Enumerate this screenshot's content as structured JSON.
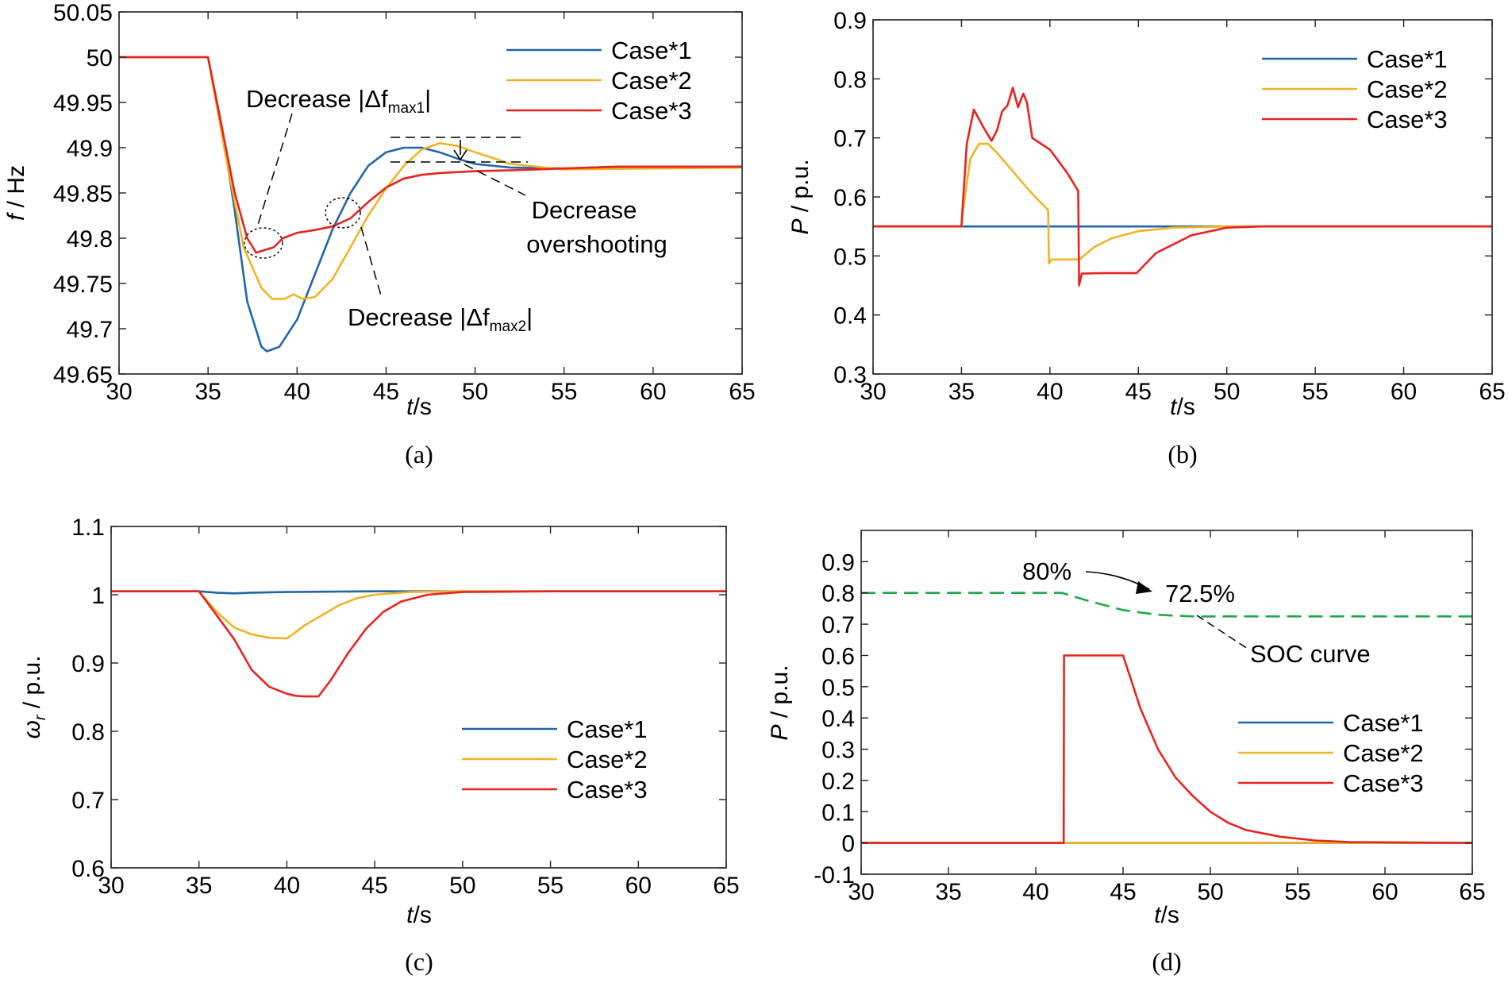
{
  "colors": {
    "case1": "#2166ac",
    "case2": "#f0b323",
    "case3": "#e8231e",
    "soc": "#1fa84a",
    "axis": "#222222"
  },
  "chart_data": [
    {
      "id": "a",
      "type": "line",
      "caption": "(a)",
      "xlabel": {
        "var": "t",
        "unit": "/s"
      },
      "ylabel": {
        "var": "f",
        "unit": " / Hz"
      },
      "xlim": [
        30,
        65
      ],
      "ylim": [
        49.65,
        50.05
      ],
      "xticks": [
        30,
        35,
        40,
        45,
        50,
        55,
        60,
        65
      ],
      "xtick_labels": [
        "30",
        "35",
        "40",
        "45",
        "50",
        "55",
        "60",
        "65"
      ],
      "yticks": [
        49.65,
        49.7,
        49.75,
        49.8,
        49.85,
        49.9,
        49.95,
        50,
        50.05
      ],
      "ytick_labels": [
        "49.65",
        "49.7",
        "49.75",
        "49.8",
        "49.85",
        "49.9",
        "49.95",
        "50",
        "50.05"
      ],
      "legend": [
        "Case*1",
        "Case*2",
        "Case*3"
      ],
      "series": [
        {
          "name": "Case*1",
          "x": [
            30,
            35,
            35.8,
            36.5,
            37.2,
            38,
            38.3,
            39,
            40,
            41,
            42,
            43,
            44,
            45,
            46,
            47,
            48,
            49,
            50,
            52,
            55,
            58,
            60,
            65
          ],
          "y": [
            50,
            50,
            49.92,
            49.83,
            49.73,
            49.68,
            49.675,
            49.68,
            49.71,
            49.76,
            49.81,
            49.85,
            49.88,
            49.895,
            49.9,
            49.9,
            49.895,
            49.888,
            49.882,
            49.878,
            49.877,
            49.879,
            49.879,
            49.879
          ]
        },
        {
          "name": "Case*2",
          "x": [
            30,
            35,
            36,
            37,
            38,
            38.6,
            39.3,
            39.8,
            40.3,
            41,
            42,
            43,
            44,
            45,
            46,
            47,
            48,
            49,
            50,
            52,
            55,
            60,
            65
          ],
          "y": [
            50,
            50,
            49.89,
            49.79,
            49.745,
            49.733,
            49.733,
            49.738,
            49.733,
            49.735,
            49.755,
            49.79,
            49.825,
            49.855,
            49.88,
            49.898,
            49.905,
            49.902,
            49.895,
            49.882,
            49.876,
            49.877,
            49.878
          ]
        },
        {
          "name": "Case*3",
          "x": [
            30,
            35,
            35.8,
            36.5,
            37.2,
            37.7,
            38.2,
            38.7,
            39.2,
            40,
            41,
            42,
            43,
            44,
            45,
            46,
            47,
            48,
            50,
            52,
            55,
            58,
            60,
            65
          ],
          "y": [
            50,
            50,
            49.92,
            49.85,
            49.8,
            49.784,
            49.787,
            49.79,
            49.8,
            49.806,
            49.809,
            49.813,
            49.822,
            49.84,
            49.856,
            49.866,
            49.87,
            49.872,
            49.874,
            49.875,
            49.877,
            49.879,
            49.879,
            49.879
          ]
        }
      ],
      "annotations": {
        "a1": "Decrease |Δf",
        "a1_sub": "max1",
        "a1_close": "|",
        "a2": "Decrease",
        "a3": "overshooting",
        "a4": "Decrease |Δf",
        "a4_sub": "max2",
        "a4_close": "|"
      }
    },
    {
      "id": "b",
      "type": "line",
      "caption": "(b)",
      "xlabel": {
        "var": "t",
        "unit": "/s"
      },
      "ylabel": {
        "var": "P",
        "unit": " / p.u."
      },
      "xlim": [
        30,
        65
      ],
      "ylim": [
        0.3,
        0.9
      ],
      "xticks": [
        30,
        35,
        40,
        45,
        50,
        55,
        60,
        65
      ],
      "xtick_labels": [
        "30",
        "35",
        "40",
        "45",
        "50",
        "55",
        "60",
        "65"
      ],
      "yticks": [
        0.3,
        0.4,
        0.5,
        0.6,
        0.7,
        0.8,
        0.9
      ],
      "ytick_labels": [
        "0.3",
        "0.4",
        "0.5",
        "0.6",
        "0.7",
        "0.8",
        "0.9"
      ],
      "legend": [
        "Case*1",
        "Case*2",
        "Case*3"
      ],
      "series": [
        {
          "name": "Case*1",
          "x": [
            30,
            65
          ],
          "y": [
            0.55,
            0.55
          ]
        },
        {
          "name": "Case*2",
          "x": [
            30,
            35,
            35.05,
            35.5,
            36,
            36.5,
            37,
            38,
            39,
            39.9,
            39.95,
            40.1,
            41.6,
            41.7,
            42.5,
            43.5,
            45,
            47,
            50,
            65
          ],
          "y": [
            0.55,
            0.55,
            0.57,
            0.665,
            0.69,
            0.69,
            0.675,
            0.64,
            0.605,
            0.578,
            0.487,
            0.494,
            0.494,
            0.495,
            0.515,
            0.53,
            0.542,
            0.548,
            0.55,
            0.55
          ]
        },
        {
          "name": "Case*3",
          "x": [
            30,
            35,
            35.05,
            35.3,
            35.7,
            36.2,
            36.7,
            37,
            37.3,
            37.6,
            37.9,
            38.2,
            38.5,
            38.7,
            39,
            40,
            41,
            41.6,
            41.65,
            41.8,
            43,
            44.9,
            46,
            48,
            50,
            52,
            65
          ],
          "y": [
            0.55,
            0.55,
            0.575,
            0.69,
            0.748,
            0.72,
            0.695,
            0.712,
            0.745,
            0.755,
            0.785,
            0.752,
            0.775,
            0.76,
            0.7,
            0.68,
            0.64,
            0.61,
            0.45,
            0.47,
            0.471,
            0.471,
            0.505,
            0.535,
            0.548,
            0.55,
            0.55
          ]
        }
      ]
    },
    {
      "id": "c",
      "type": "line",
      "caption": "(c)",
      "xlabel": {
        "var": "t",
        "unit": "/s"
      },
      "ylabel": {
        "var": "ω",
        "sub": "r",
        "unit": " / p.u."
      },
      "xlim": [
        30,
        65
      ],
      "ylim": [
        0.6,
        1.1
      ],
      "xticks": [
        30,
        35,
        40,
        45,
        50,
        55,
        60,
        65
      ],
      "xtick_labels": [
        "30",
        "35",
        "40",
        "45",
        "50",
        "55",
        "60",
        "65"
      ],
      "yticks": [
        0.6,
        0.7,
        0.8,
        0.9,
        1,
        1.1
      ],
      "ytick_labels": [
        "0.6",
        "0.7",
        "0.8",
        "0.9",
        "1",
        "1.1"
      ],
      "legend": [
        "Case*1",
        "Case*2",
        "Case*3"
      ],
      "series": [
        {
          "name": "Case*1",
          "x": [
            30,
            35,
            36,
            37,
            38,
            40,
            45,
            50,
            65
          ],
          "y": [
            1.005,
            1.005,
            1.003,
            1.002,
            1.003,
            1.004,
            1.005,
            1.005,
            1.005
          ]
        },
        {
          "name": "Case*2",
          "x": [
            30,
            35,
            36,
            37,
            38,
            39,
            40,
            40.5,
            41,
            42,
            43,
            44,
            45,
            47,
            50,
            65
          ],
          "y": [
            1.005,
            1.005,
            0.975,
            0.952,
            0.942,
            0.937,
            0.936,
            0.945,
            0.955,
            0.97,
            0.985,
            0.995,
            1.0,
            1.004,
            1.005,
            1.005
          ]
        },
        {
          "name": "Case*3",
          "x": [
            30,
            35,
            36,
            37,
            38,
            39,
            40,
            40.5,
            41,
            41.8,
            42.5,
            43.5,
            44.5,
            45.5,
            46.5,
            48,
            50,
            55,
            65
          ],
          "y": [
            1.005,
            1.005,
            0.97,
            0.935,
            0.89,
            0.865,
            0.855,
            0.852,
            0.851,
            0.851,
            0.875,
            0.915,
            0.95,
            0.975,
            0.99,
            1.0,
            1.004,
            1.005,
            1.005
          ]
        }
      ]
    },
    {
      "id": "d",
      "type": "line",
      "caption": "(d)",
      "xlabel": {
        "var": "t",
        "unit": "/s"
      },
      "ylabel": {
        "var": "P",
        "unit": " / p.u."
      },
      "xlim": [
        30,
        65
      ],
      "ylim": [
        -0.1,
        1.0
      ],
      "xticks": [
        30,
        35,
        40,
        45,
        50,
        55,
        60,
        65
      ],
      "xtick_labels": [
        "30",
        "35",
        "40",
        "45",
        "50",
        "55",
        "60",
        "65"
      ],
      "yticks": [
        -0.1,
        0,
        0.1,
        0.2,
        0.3,
        0.4,
        0.5,
        0.6,
        0.7,
        0.8,
        0.9
      ],
      "ytick_labels": [
        "-0.1",
        "0",
        "0.1",
        "0.2",
        "0.3",
        "0.4",
        "0.5",
        "0.6",
        "0.7",
        "0.8",
        "0.9"
      ],
      "legend": [
        "Case*1",
        "Case*2",
        "Case*3"
      ],
      "series": [
        {
          "name": "Case*1",
          "x": [
            30,
            65
          ],
          "y": [
            0,
            0
          ]
        },
        {
          "name": "Case*2",
          "x": [
            30,
            65
          ],
          "y": [
            0,
            0
          ]
        },
        {
          "name": "Case*3",
          "x": [
            30,
            41.6,
            41.62,
            45,
            46,
            47,
            48,
            49,
            50,
            51,
            52,
            54,
            56,
            58,
            65
          ],
          "y": [
            0,
            0,
            0.6,
            0.6,
            0.43,
            0.3,
            0.21,
            0.15,
            0.1,
            0.065,
            0.042,
            0.02,
            0.008,
            0.003,
            0
          ]
        },
        {
          "name": "SOC curve",
          "style": "dashed",
          "x": [
            30,
            41.5,
            43,
            45,
            47,
            49,
            51,
            65
          ],
          "y": [
            0.8,
            0.8,
            0.775,
            0.745,
            0.73,
            0.725,
            0.725,
            0.725
          ]
        }
      ],
      "annotations": {
        "soc_start": "80%",
        "soc_end": "72.5%",
        "soc_label": "SOC curve"
      }
    }
  ]
}
